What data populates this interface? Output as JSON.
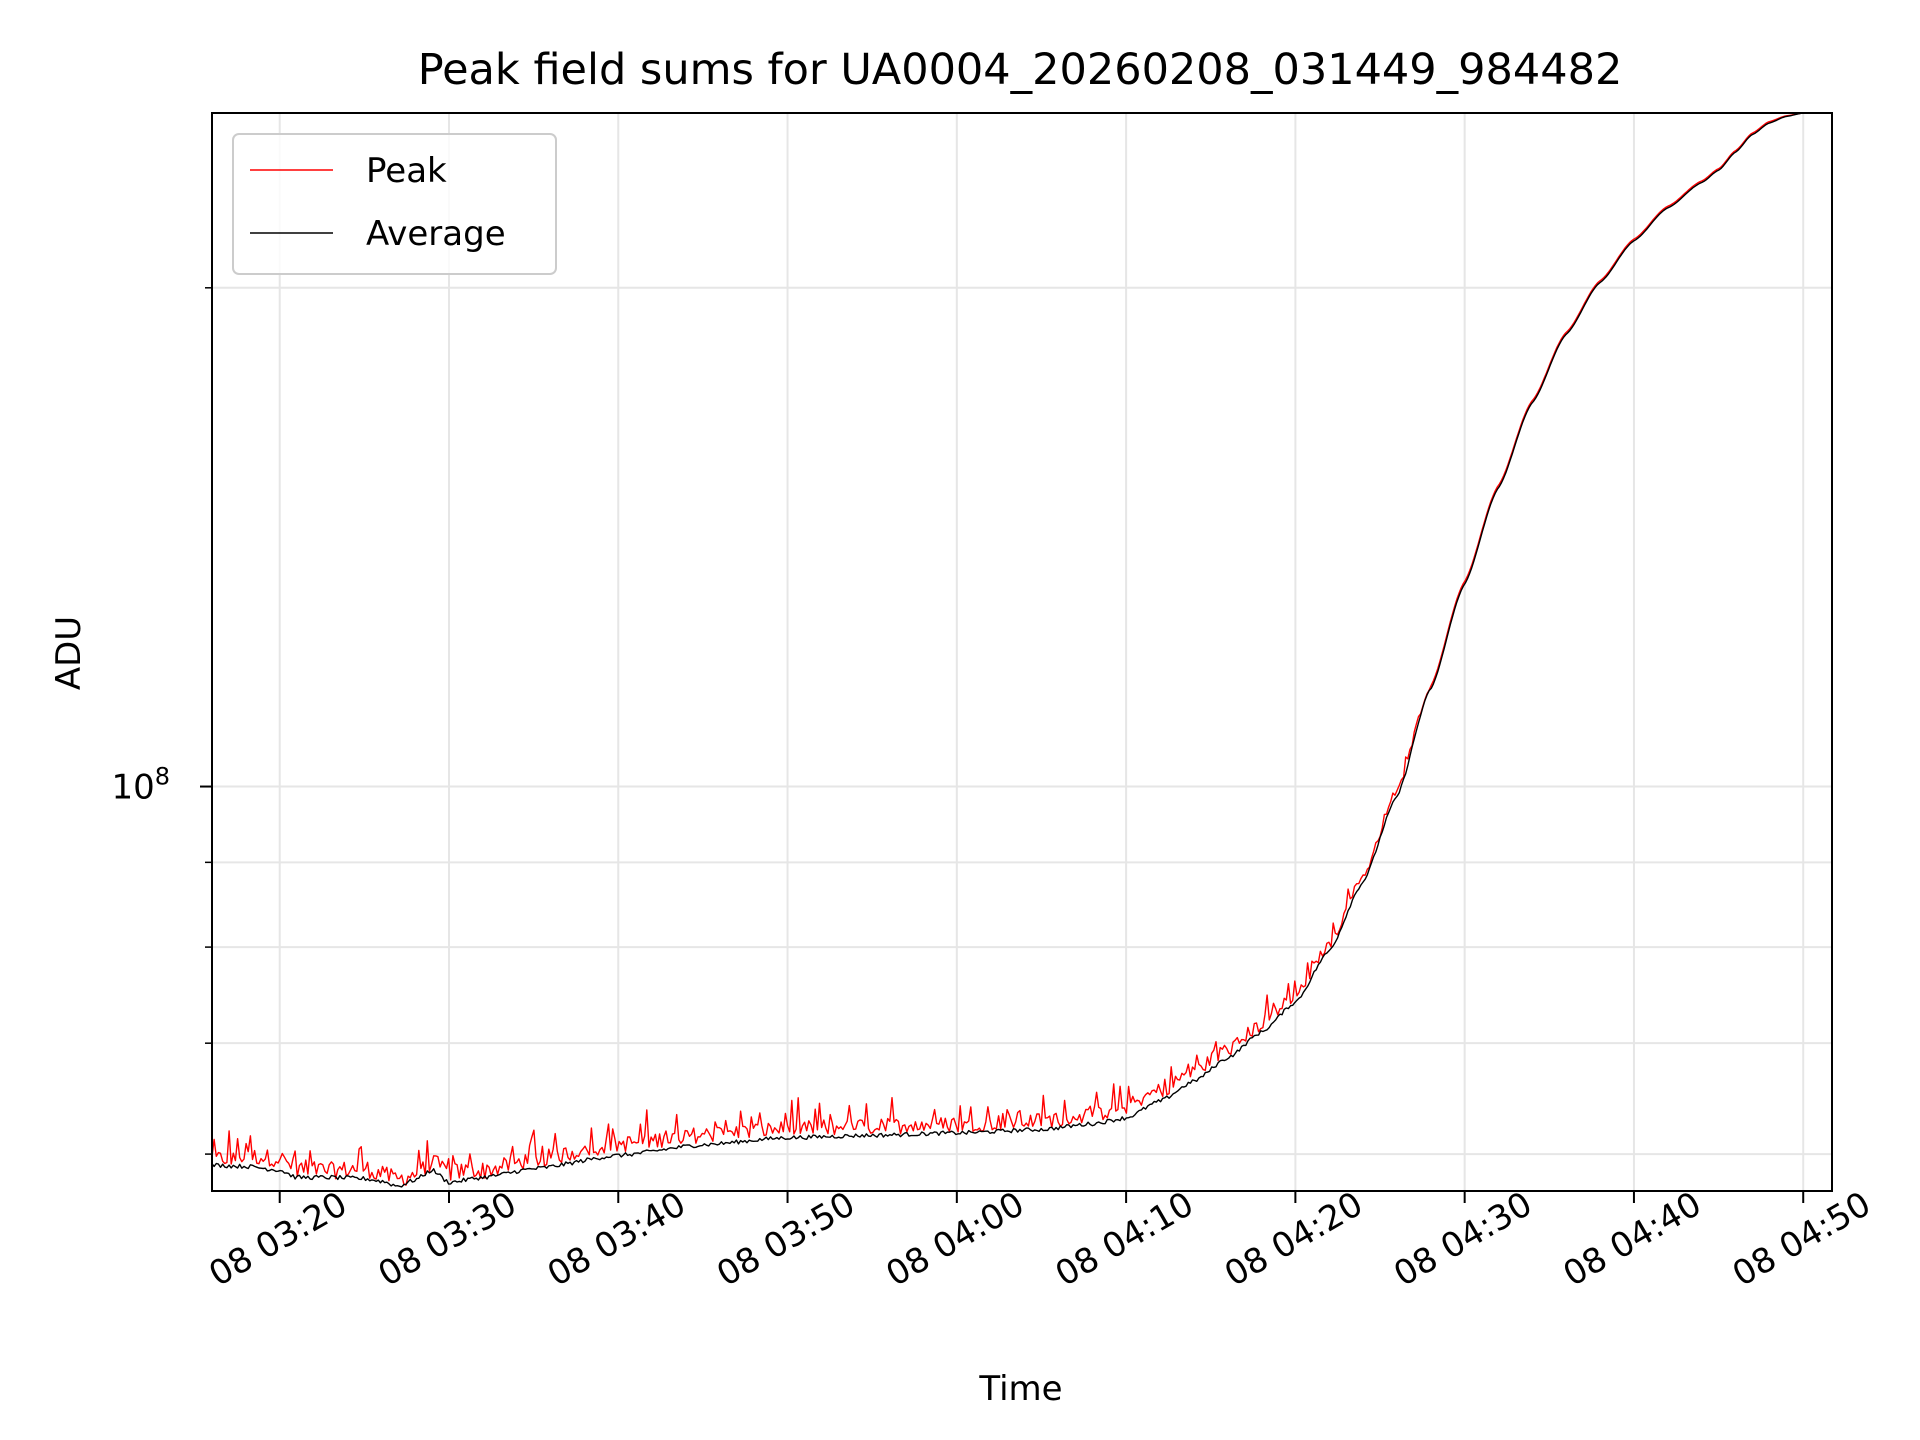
{
  "chart_data": {
    "type": "line",
    "title": "Peak field sums for UA0004_20260208_031449_984482",
    "xlabel": "Time",
    "ylabel": "ADU",
    "yscale": "log",
    "ylim": [
      57000000,
      255000000
    ],
    "xlim_minutes": [
      16,
      111.7
    ],
    "x_ticks": [
      {
        "label": "08 03:20",
        "minute": 20
      },
      {
        "label": "08 03:30",
        "minute": 30
      },
      {
        "label": "08 03:40",
        "minute": 40
      },
      {
        "label": "08 03:50",
        "minute": 50
      },
      {
        "label": "08 04:00",
        "minute": 60
      },
      {
        "label": "08 04:10",
        "minute": 70
      },
      {
        "label": "08 04:20",
        "minute": 80
      },
      {
        "label": "08 04:30",
        "minute": 90
      },
      {
        "label": "08 04:40",
        "minute": 100
      },
      {
        "label": "08 04:50",
        "minute": 110
      }
    ],
    "y_major_ticks": [
      {
        "base": "10",
        "exponent": "8",
        "value": 100000000
      }
    ],
    "y_minor_ticks": [
      60000000,
      70000000,
      80000000,
      90000000,
      200000000
    ],
    "grid": true,
    "legend": {
      "position": "upper-left",
      "entries": [
        "Peak",
        "Average"
      ]
    },
    "series": [
      {
        "name": "Peak",
        "color": "#ff0000",
        "noise": true,
        "anchors": [
          [
            16,
            59.2
          ],
          [
            18,
            59.5
          ],
          [
            20,
            59.3
          ],
          [
            21,
            58.5
          ],
          [
            23,
            58.3
          ],
          [
            25,
            58.5
          ],
          [
            26,
            58.0
          ],
          [
            27,
            57.6
          ],
          [
            28,
            58.0
          ],
          [
            29,
            59.0
          ],
          [
            30,
            58.2
          ],
          [
            32,
            58.3
          ],
          [
            35,
            59.2
          ],
          [
            40,
            60.5
          ],
          [
            45,
            61.3
          ],
          [
            50,
            61.8
          ],
          [
            55,
            62.0
          ],
          [
            60,
            62.2
          ],
          [
            65,
            62.5
          ],
          [
            68,
            63.0
          ],
          [
            70,
            63.8
          ],
          [
            72,
            65.2
          ],
          [
            74,
            67.0
          ],
          [
            76,
            69.0
          ],
          [
            78,
            71.5
          ],
          [
            80,
            74.5
          ],
          [
            82,
            80.0
          ],
          [
            84,
            88.0
          ],
          [
            86,
            99.0
          ],
          [
            88,
            115.0
          ],
          [
            90,
            133.0
          ],
          [
            92,
            152.0
          ],
          [
            94,
            171.0
          ],
          [
            96,
            188.0
          ],
          [
            98,
            202.0
          ],
          [
            100,
            214.0
          ],
          [
            102,
            224.0
          ],
          [
            104,
            232.0
          ],
          [
            105,
            236.0
          ],
          [
            106,
            242.0
          ],
          [
            107,
            248.0
          ],
          [
            108,
            252.0
          ],
          [
            109,
            254.0
          ],
          [
            110,
            255.0
          ],
          [
            111.7,
            255.0
          ]
        ]
      },
      {
        "name": "Average",
        "color": "#000000",
        "noise": false,
        "anchors": [
          [
            16,
            59.0
          ],
          [
            18,
            58.9
          ],
          [
            20,
            58.6
          ],
          [
            21,
            58.0
          ],
          [
            23,
            58.0
          ],
          [
            25,
            57.9
          ],
          [
            26,
            57.7
          ],
          [
            27,
            57.3
          ],
          [
            28,
            57.8
          ],
          [
            29,
            58.6
          ],
          [
            30,
            57.6
          ],
          [
            32,
            58.0
          ],
          [
            35,
            58.7
          ],
          [
            40,
            59.8
          ],
          [
            45,
            60.7
          ],
          [
            50,
            61.3
          ],
          [
            55,
            61.5
          ],
          [
            60,
            61.7
          ],
          [
            65,
            62.0
          ],
          [
            68,
            62.5
          ],
          [
            70,
            63.0
          ],
          [
            72,
            64.5
          ],
          [
            74,
            66.3
          ],
          [
            76,
            68.5
          ],
          [
            78,
            71.0
          ],
          [
            80,
            74.0
          ],
          [
            82,
            79.5
          ],
          [
            84,
            87.5
          ],
          [
            86,
            98.5
          ],
          [
            88,
            114.5
          ],
          [
            90,
            132.5
          ],
          [
            92,
            151.5
          ],
          [
            94,
            170.5
          ],
          [
            96,
            187.5
          ],
          [
            98,
            201.5
          ],
          [
            100,
            213.5
          ],
          [
            102,
            223.5
          ],
          [
            104,
            231.5
          ],
          [
            105,
            235.5
          ],
          [
            106,
            241.5
          ],
          [
            107,
            247.5
          ],
          [
            108,
            251.5
          ],
          [
            109,
            253.8
          ],
          [
            110,
            255.0
          ],
          [
            111.7,
            255.0
          ]
        ]
      }
    ]
  }
}
